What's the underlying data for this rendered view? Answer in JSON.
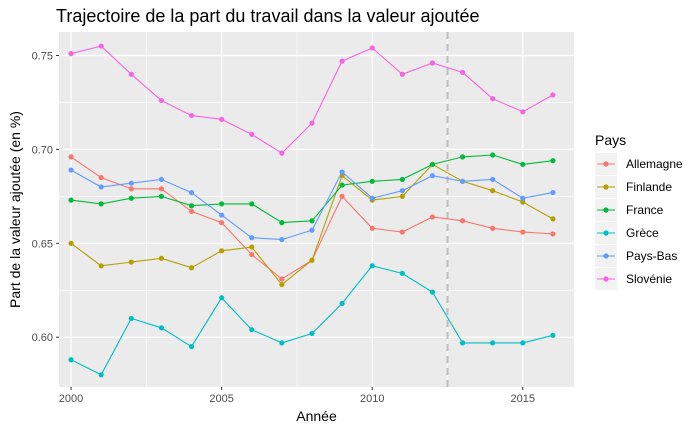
{
  "chart_data": {
    "type": "line",
    "title": "Trajectoire de la part du travail dans la valeur ajoutée",
    "xlabel": "Année",
    "ylabel": "Part de la valeur ajoutée (en %)",
    "x": [
      2000,
      2001,
      2002,
      2003,
      2004,
      2005,
      2006,
      2007,
      2008,
      2009,
      2010,
      2011,
      2012,
      2013,
      2014,
      2015,
      2016
    ],
    "xlim": [
      1999.6,
      2016.7
    ],
    "ylim": [
      0.5735,
      0.7625
    ],
    "x_ticks": [
      {
        "value": 2000,
        "label": "2000"
      },
      {
        "value": 2005,
        "label": "2005"
      },
      {
        "value": 2010,
        "label": "2010"
      },
      {
        "value": 2015,
        "label": "2015"
      }
    ],
    "y_ticks": [
      {
        "value": 0.6,
        "label": "0.60"
      },
      {
        "value": 0.65,
        "label": "0.65"
      },
      {
        "value": 0.7,
        "label": "0.70"
      },
      {
        "value": 0.75,
        "label": "0.75"
      }
    ],
    "vline": 2012.5,
    "grid": true,
    "legend": {
      "title": "Pays",
      "position": "right"
    },
    "series": [
      {
        "name": "Allemagne",
        "color": "#F8766D",
        "values": [
          0.696,
          0.685,
          0.679,
          0.679,
          0.667,
          0.661,
          0.644,
          0.631,
          0.641,
          0.675,
          0.658,
          0.656,
          0.664,
          0.662,
          0.658,
          0.656,
          0.655
        ]
      },
      {
        "name": "Finlande",
        "color": "#B79F00",
        "values": [
          0.65,
          0.638,
          0.64,
          0.642,
          0.637,
          0.646,
          0.648,
          0.628,
          0.641,
          0.686,
          0.673,
          0.675,
          0.692,
          0.683,
          0.678,
          0.672,
          0.663
        ]
      },
      {
        "name": "France",
        "color": "#00BA38",
        "values": [
          0.673,
          0.671,
          0.674,
          0.675,
          0.67,
          0.671,
          0.671,
          0.661,
          0.662,
          0.681,
          0.683,
          0.684,
          0.692,
          0.696,
          0.697,
          0.692,
          0.694
        ]
      },
      {
        "name": "Grèce",
        "color": "#00BFC4",
        "values": [
          0.588,
          0.58,
          0.61,
          0.605,
          0.595,
          0.621,
          0.604,
          0.597,
          0.602,
          0.618,
          0.638,
          0.634,
          0.624,
          0.597,
          0.597,
          0.597,
          0.601
        ]
      },
      {
        "name": "Pays-Bas",
        "color": "#619CFF",
        "values": [
          0.689,
          0.68,
          0.682,
          0.684,
          0.677,
          0.665,
          0.653,
          0.652,
          0.657,
          0.688,
          0.674,
          0.678,
          0.686,
          0.683,
          0.684,
          0.674,
          0.677
        ]
      },
      {
        "name": "Slovénie",
        "color": "#F564E3",
        "values": [
          0.751,
          0.755,
          0.74,
          0.726,
          0.718,
          0.716,
          0.708,
          0.698,
          0.714,
          0.747,
          0.754,
          0.74,
          0.746,
          0.741,
          0.727,
          0.72,
          0.729
        ]
      }
    ]
  }
}
